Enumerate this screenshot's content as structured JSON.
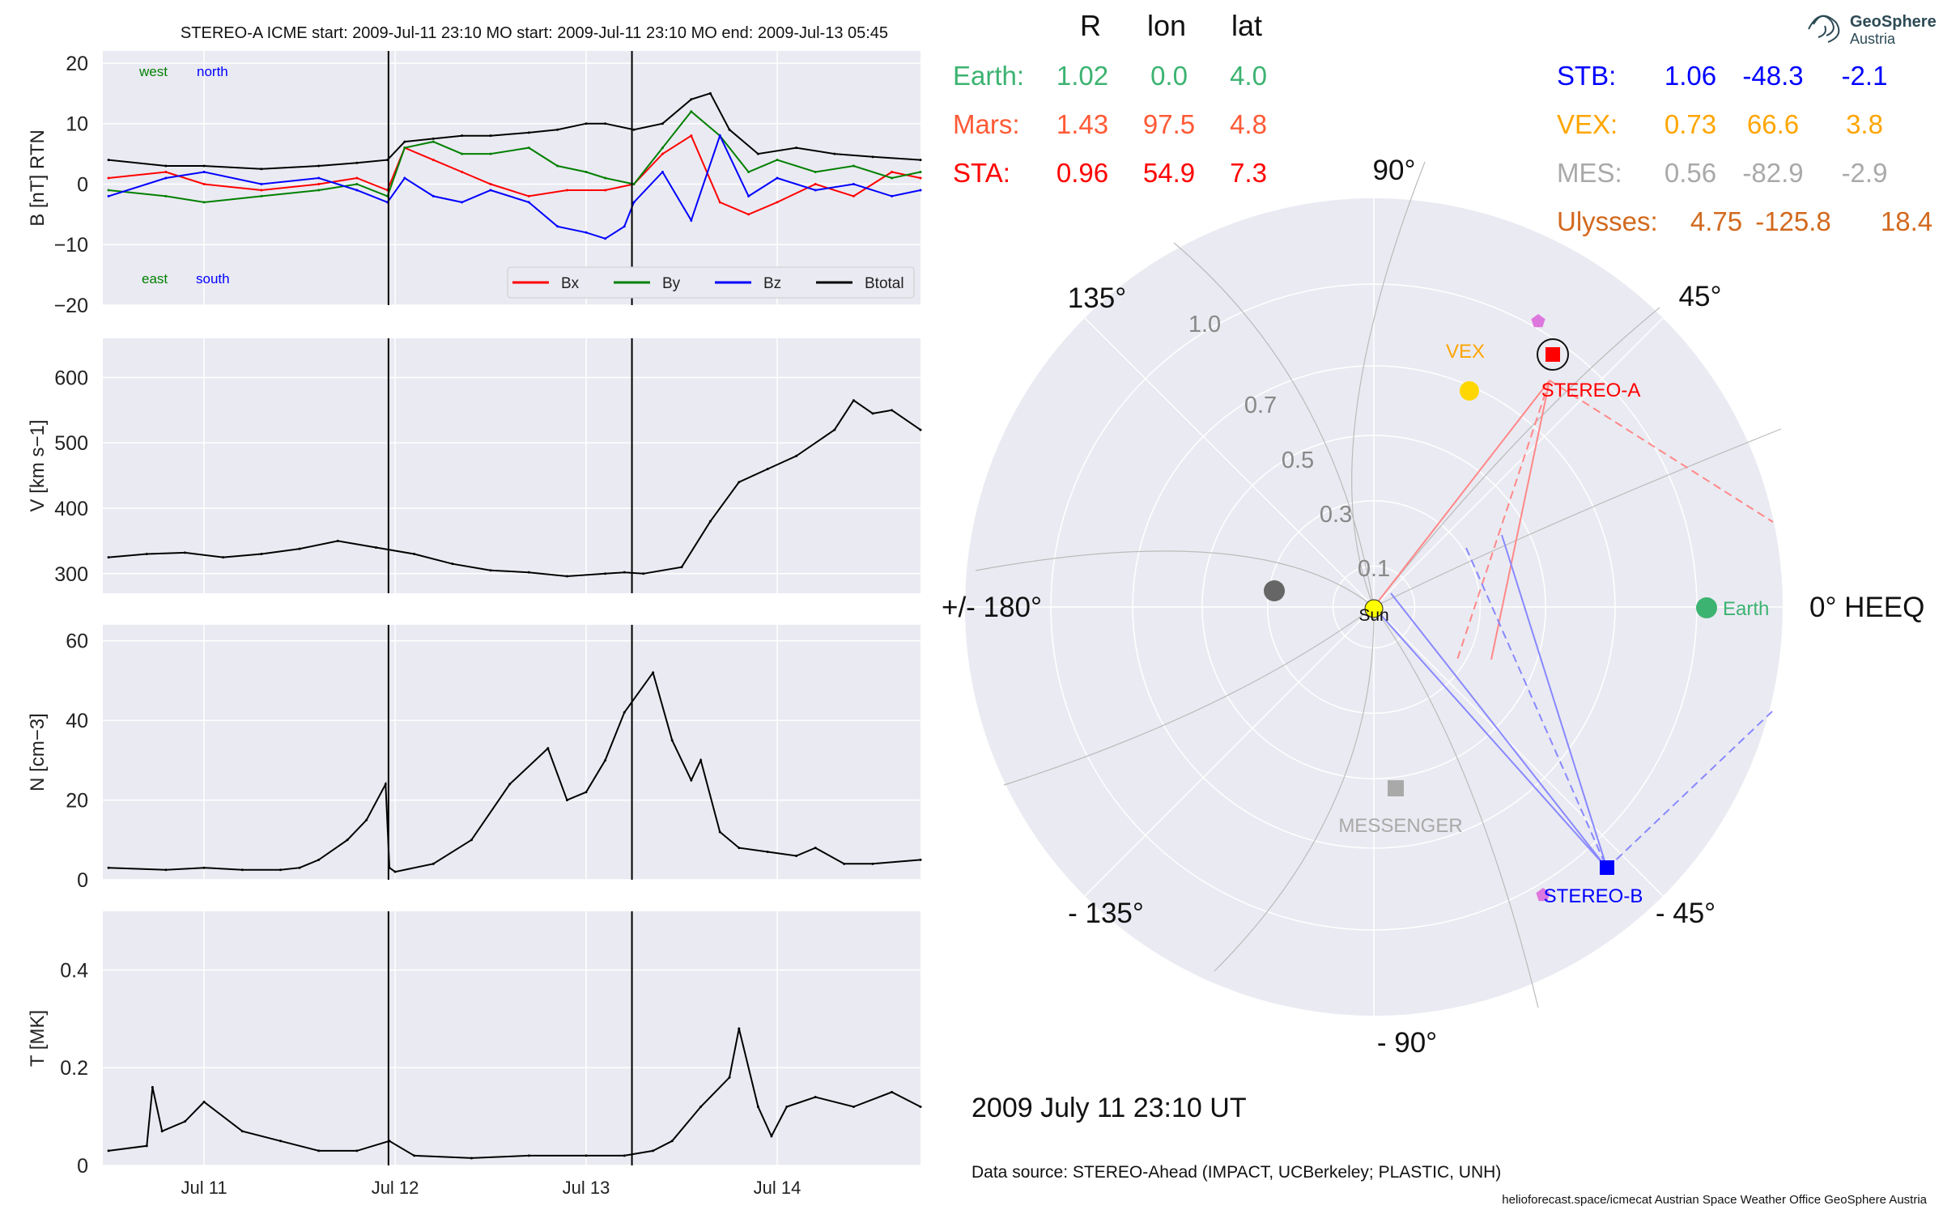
{
  "header": {
    "left_title": "STEREO-A    ICME start: 2009-Jul-11 23:10    MO start: 2009-Jul-11 23:10    MO end: 2009-Jul-13 05:45"
  },
  "positions_table": {
    "col_headers": [
      "R",
      "lon",
      "lat"
    ],
    "left_rows": [
      {
        "label": "Earth:",
        "R": "1.02",
        "lon": "0.0",
        "lat": "4.0",
        "color": "#3cb371"
      },
      {
        "label": "Mars:",
        "R": "1.43",
        "lon": "97.5",
        "lat": "4.8",
        "color": "#ff5a36"
      },
      {
        "label": "STA:",
        "R": "0.96",
        "lon": "54.9",
        "lat": "7.3",
        "color": "#ff0000"
      }
    ],
    "right_rows": [
      {
        "label": "STB:",
        "R": "1.06",
        "lon": "-48.3",
        "lat": "-2.1",
        "color": "#0000ff"
      },
      {
        "label": "VEX:",
        "R": "0.73",
        "lon": "66.6",
        "lat": "3.8",
        "color": "#ffa500"
      },
      {
        "label": "MES:",
        "R": "0.56",
        "lon": "-82.9",
        "lat": "-2.9",
        "color": "#a9a9a9"
      },
      {
        "label": "Ulysses:",
        "R": "4.75",
        "lon": "-125.8",
        "lat": "18.4",
        "color": "#d2691e"
      }
    ]
  },
  "logo": {
    "line1": "GeoSphere",
    "line2": "Austria"
  },
  "polar": {
    "angle_labels": [
      "90°",
      "45°",
      "0° HEEQ",
      "- 45°",
      "- 90°",
      "- 135°",
      "+/- 180°",
      "135°"
    ],
    "radial_labels": [
      "0.1",
      "0.3",
      "0.5",
      "0.7",
      "1.0"
    ],
    "objects": {
      "sun": "Sun",
      "earth": "Earth",
      "vex": "VEX",
      "stereo_a": "STEREO-A",
      "stereo_b": "STEREO-B",
      "messenger": "MESSENGER"
    },
    "colors": {
      "earth": "#3cb371",
      "vex": "#ffd700",
      "vex_label": "#ffa500",
      "stereo_a": "#ff0000",
      "stereo_b": "#0000ff",
      "messenger": "#a9a9a9",
      "mars": "#666666",
      "sun": "#ffff00",
      "pentagon": "#dd77dd"
    }
  },
  "timestamp": "2009 July 11  23:10 UT",
  "footer": {
    "data_source": "Data source: STEREO-Ahead (IMPACT, UCBerkeley; PLASTIC, UNH)",
    "credits": "helioforecast.space/icmecat   Austrian Space Weather Office   GeoSphere Austria"
  },
  "chart_data": [
    {
      "type": "line",
      "ylabel": "B [nT] RTN",
      "ylim": [
        -20,
        22
      ],
      "yticks": [
        -20,
        -10,
        0,
        10,
        20
      ],
      "x_unit": "days (Jul 10 00:00 = 0)",
      "xlim": [
        0.47,
        4.75
      ],
      "xticks": [
        "Jul 11",
        "Jul 12",
        "Jul 13",
        "Jul 14"
      ],
      "vlines": [
        "2009-07-11 23:10",
        "2009-07-13 05:45"
      ],
      "inner_labels": {
        "west": "west",
        "north": "north",
        "east": "east",
        "south": "south"
      },
      "legend": "lower-right",
      "series": [
        {
          "name": "Bx",
          "color": "#ff0000",
          "x": [
            0.5,
            0.8,
            1.0,
            1.3,
            1.6,
            1.8,
            1.96,
            2.05,
            2.2,
            2.35,
            2.5,
            2.7,
            2.9,
            3.1,
            3.25,
            3.4,
            3.55,
            3.7,
            3.85,
            4.0,
            4.2,
            4.4,
            4.6,
            4.75
          ],
          "y": [
            1,
            2,
            0,
            -1,
            0,
            1,
            -1,
            6,
            4,
            2,
            0,
            -2,
            -1,
            -1,
            0,
            5,
            8,
            -3,
            -5,
            -3,
            0,
            -2,
            2,
            1
          ]
        },
        {
          "name": "By",
          "color": "#008000",
          "x": [
            0.5,
            0.8,
            1.0,
            1.3,
            1.6,
            1.8,
            1.96,
            2.05,
            2.2,
            2.35,
            2.5,
            2.7,
            2.85,
            3.0,
            3.1,
            3.25,
            3.4,
            3.55,
            3.7,
            3.85,
            4.0,
            4.2,
            4.4,
            4.6,
            4.75
          ],
          "y": [
            -1,
            -2,
            -3,
            -2,
            -1,
            0,
            -2,
            6,
            7,
            5,
            5,
            6,
            3,
            2,
            1,
            0,
            6,
            12,
            8,
            2,
            4,
            2,
            3,
            1,
            2
          ]
        },
        {
          "name": "Bz",
          "color": "#0000ff",
          "x": [
            0.5,
            0.8,
            1.0,
            1.3,
            1.6,
            1.8,
            1.96,
            2.05,
            2.2,
            2.35,
            2.5,
            2.7,
            2.85,
            3.0,
            3.1,
            3.2,
            3.25,
            3.4,
            3.55,
            3.7,
            3.85,
            4.0,
            4.2,
            4.4,
            4.6,
            4.75
          ],
          "y": [
            -2,
            1,
            2,
            0,
            1,
            -1,
            -3,
            1,
            -2,
            -3,
            -1,
            -3,
            -7,
            -8,
            -9,
            -7,
            -3,
            2,
            -6,
            8,
            -2,
            1,
            -1,
            0,
            -2,
            -1
          ]
        },
        {
          "name": "Btotal",
          "color": "#000000",
          "x": [
            0.5,
            0.8,
            1.0,
            1.3,
            1.6,
            1.8,
            1.96,
            2.05,
            2.2,
            2.35,
            2.5,
            2.7,
            2.85,
            3.0,
            3.1,
            3.25,
            3.4,
            3.55,
            3.65,
            3.75,
            3.9,
            4.1,
            4.3,
            4.5,
            4.75
          ],
          "y": [
            4,
            3,
            3,
            2.5,
            3,
            3.5,
            4,
            7,
            7.5,
            8,
            8,
            8.5,
            9,
            10,
            10,
            9,
            10,
            14,
            15,
            9,
            5,
            6,
            5,
            4.5,
            4
          ]
        }
      ]
    },
    {
      "type": "line",
      "ylabel": "V [km s−1]",
      "ylim": [
        270,
        660
      ],
      "yticks": [
        300,
        400,
        500,
        600
      ],
      "xlim": [
        0.47,
        4.75
      ],
      "vlines": [
        "2009-07-11 23:10",
        "2009-07-13 05:45"
      ],
      "series": [
        {
          "name": "",
          "color": "#000000",
          "x": [
            0.5,
            0.7,
            0.9,
            1.1,
            1.3,
            1.5,
            1.7,
            1.9,
            2.1,
            2.3,
            2.5,
            2.7,
            2.9,
            3.1,
            3.2,
            3.3,
            3.5,
            3.65,
            3.8,
            3.95,
            4.1,
            4.3,
            4.4,
            4.5,
            4.6,
            4.75
          ],
          "y": [
            325,
            330,
            332,
            325,
            330,
            338,
            350,
            340,
            330,
            315,
            305,
            302,
            296,
            300,
            302,
            300,
            310,
            380,
            440,
            460,
            480,
            520,
            565,
            545,
            550,
            520
          ]
        }
      ]
    },
    {
      "type": "line",
      "ylabel": "N [cm−3]",
      "ylim": [
        0,
        64
      ],
      "yticks": [
        0,
        20,
        40,
        60
      ],
      "xlim": [
        0.47,
        4.75
      ],
      "vlines": [
        "2009-07-11 23:10",
        "2009-07-13 05:45"
      ],
      "series": [
        {
          "name": "",
          "color": "#000000",
          "x": [
            0.5,
            0.8,
            1.0,
            1.2,
            1.4,
            1.5,
            1.6,
            1.75,
            1.85,
            1.95,
            1.97,
            2.0,
            2.2,
            2.4,
            2.6,
            2.8,
            2.9,
            3.0,
            3.1,
            3.2,
            3.35,
            3.45,
            3.55,
            3.6,
            3.7,
            3.8,
            3.95,
            4.1,
            4.2,
            4.35,
            4.5,
            4.75
          ],
          "y": [
            3,
            2.5,
            3,
            2.5,
            2.5,
            3,
            5,
            10,
            15,
            24,
            3,
            2,
            4,
            10,
            24,
            33,
            20,
            22,
            30,
            42,
            52,
            35,
            25,
            30,
            12,
            8,
            7,
            6,
            8,
            4,
            4,
            5
          ]
        }
      ]
    },
    {
      "type": "line",
      "ylabel": "T [MK]",
      "ylim": [
        0,
        0.52
      ],
      "yticks": [
        0.0,
        0.2,
        0.4
      ],
      "xlim": [
        0.47,
        4.75
      ],
      "xticks": [
        "Jul 11",
        "Jul 12",
        "Jul 13",
        "Jul 14"
      ],
      "vlines": [
        "2009-07-11 23:10",
        "2009-07-13 05:45"
      ],
      "series": [
        {
          "name": "",
          "color": "#000000",
          "x": [
            0.5,
            0.7,
            0.73,
            0.78,
            0.9,
            1.0,
            1.2,
            1.4,
            1.6,
            1.8,
            1.97,
            2.1,
            2.4,
            2.7,
            3.0,
            3.2,
            3.35,
            3.45,
            3.6,
            3.75,
            3.8,
            3.9,
            3.97,
            4.05,
            4.2,
            4.4,
            4.6,
            4.75
          ],
          "y": [
            0.03,
            0.04,
            0.16,
            0.07,
            0.09,
            0.13,
            0.07,
            0.05,
            0.03,
            0.03,
            0.05,
            0.02,
            0.015,
            0.02,
            0.02,
            0.02,
            0.03,
            0.05,
            0.12,
            0.18,
            0.28,
            0.12,
            0.06,
            0.12,
            0.14,
            0.12,
            0.15,
            0.12
          ]
        }
      ]
    }
  ]
}
